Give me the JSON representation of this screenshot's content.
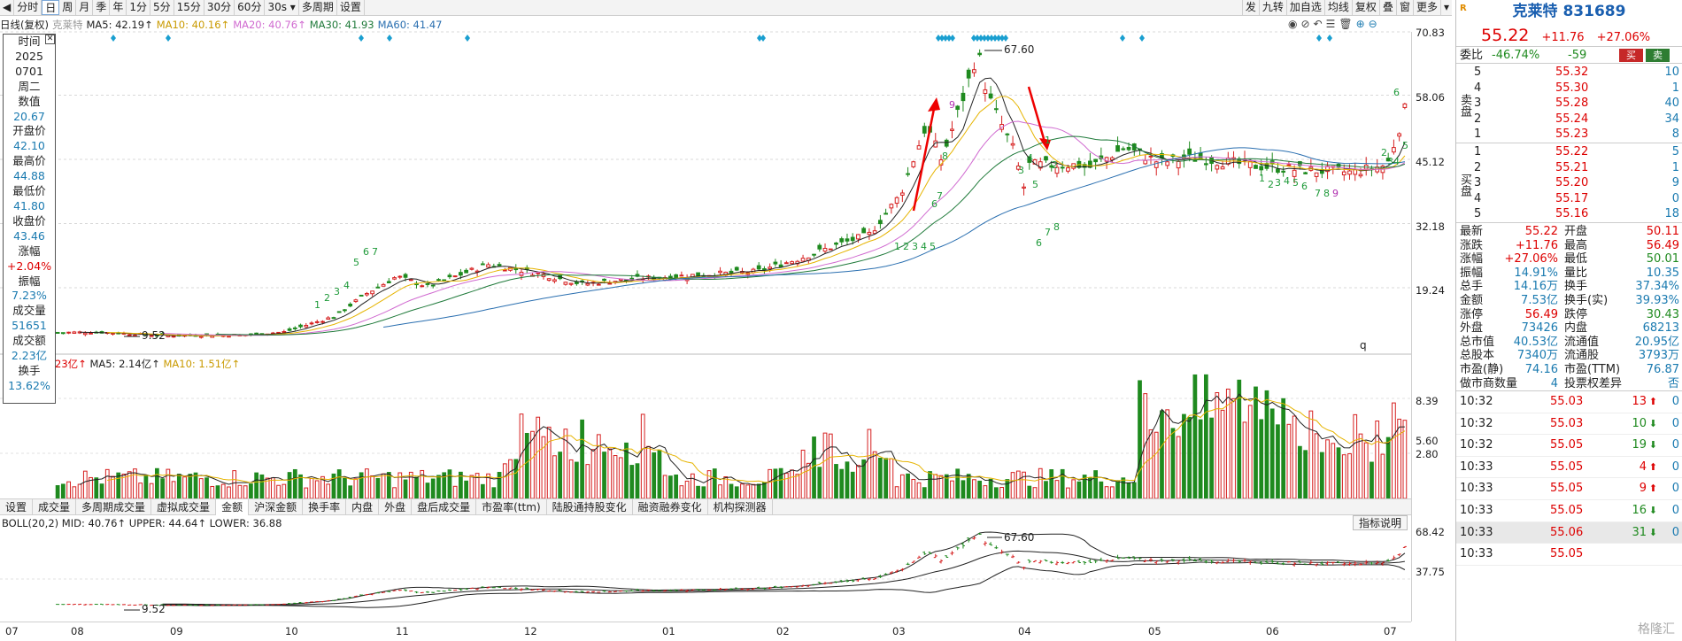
{
  "toolbar": {
    "left": [
      "◀",
      "分时",
      "日",
      "周",
      "月",
      "季",
      "年",
      "1分",
      "5分",
      "15分",
      "30分",
      "60分",
      "30s ▾",
      "多周期",
      "设置"
    ],
    "selected": "日",
    "right": [
      "发",
      "九转",
      "加自选",
      "均线",
      "复权",
      "叠",
      "窗",
      "更多",
      "▾"
    ]
  },
  "chart_header": {
    "period": "日线(复权)",
    "stock": "克莱特",
    "ma5": "MA5: 42.19↑",
    "ma10": "MA10: 40.16↑",
    "ma20": "MA20: 40.76↑",
    "ma30": "MA30: 41.93",
    "ma60": "MA60: 41.47"
  },
  "chart_icons": [
    "eye-icon",
    "eye-off-icon",
    "undo-icon",
    "list-icon",
    "trash-icon",
    "zoom-in-icon",
    "zoom-out-icon"
  ],
  "price_axis": [
    "70.83",
    "58.06",
    "45.12",
    "32.18",
    "19.24"
  ],
  "annotations": {
    "high": "67.60",
    "low": "9.52",
    "marker_q": "q"
  },
  "volume_header": {
    "prefix": "23亿↑",
    "ma5": "MA5: 2.14亿↑",
    "ma10": "MA10: 1.51亿↑"
  },
  "volume_axis": [
    "8.39",
    "5.60",
    "2.80"
  ],
  "indicator_tabs": [
    "设置",
    "成交量",
    "多周期成交量",
    "虚拟成交量",
    "金额",
    "沪深金额",
    "换手率",
    "内盘",
    "外盘",
    "盘后成交量",
    "市盈率(ttm)",
    "陆股通持股变化",
    "融资融券变化",
    "机构探测器"
  ],
  "indicator_selected": "金额",
  "boll_header": {
    "label": "BOLL(20,2)",
    "mid": "MID: 40.76↑",
    "upper": "UPPER: 44.64↑",
    "lower": "LOWER: 36.88"
  },
  "boll_axis": [
    "68.42",
    "37.75"
  ],
  "boll_annotations": {
    "high": "67.60",
    "low": "9.52"
  },
  "indicator_help": "指标说明",
  "x_axis": [
    "07",
    "08",
    "09",
    "10",
    "11",
    "12",
    "01",
    "02",
    "03",
    "04",
    "05",
    "06",
    "07"
  ],
  "info_panel": [
    {
      "k": "时间",
      "v": "2025",
      "v2": "0701",
      "v3": "周二"
    },
    {
      "k": "数值",
      "v": "20.67"
    },
    {
      "k": "开盘价",
      "v": "42.10"
    },
    {
      "k": "最高价",
      "v": "44.88"
    },
    {
      "k": "最低价",
      "v": "41.80"
    },
    {
      "k": "收盘价",
      "v": "43.46"
    },
    {
      "k": "涨幅",
      "v": "+2.04%"
    },
    {
      "k": "振幅",
      "v": "7.23%"
    },
    {
      "k": "成交量",
      "v": "51651"
    },
    {
      "k": "成交额",
      "v": "2.23亿"
    },
    {
      "k": "换手",
      "v": "13.62%"
    }
  ],
  "quote": {
    "badge": "R",
    "name": "克莱特 831689",
    "price": "55.22",
    "change": "+11.76",
    "pct": "+27.06%",
    "weibi_label": "委比",
    "weibi": "-46.74%",
    "weicha": "-59",
    "buy_btn": "买",
    "sell_btn": "卖",
    "sell_side": "卖盘",
    "buy_side": "买盘",
    "asks": [
      {
        "lv": "5",
        "price": "55.32",
        "vol": "10"
      },
      {
        "lv": "4",
        "price": "55.30",
        "vol": "1"
      },
      {
        "lv": "3",
        "price": "55.28",
        "vol": "40"
      },
      {
        "lv": "2",
        "price": "55.24",
        "vol": "34"
      },
      {
        "lv": "1",
        "price": "55.23",
        "vol": "8"
      }
    ],
    "bids": [
      {
        "lv": "1",
        "price": "55.22",
        "vol": "5"
      },
      {
        "lv": "2",
        "price": "55.21",
        "vol": "1"
      },
      {
        "lv": "3",
        "price": "55.20",
        "vol": "9"
      },
      {
        "lv": "4",
        "price": "55.17",
        "vol": "0"
      },
      {
        "lv": "5",
        "price": "55.16",
        "vol": "18"
      }
    ],
    "stats": [
      {
        "l1": "最新",
        "v1": "55.22",
        "l2": "开盘",
        "v2": "50.11"
      },
      {
        "l1": "涨跌",
        "v1": "+11.76",
        "l2": "最高",
        "v2": "56.49"
      },
      {
        "l1": "涨幅",
        "v1": "+27.06%",
        "l2": "最低",
        "v2": "50.01"
      },
      {
        "l1": "振幅",
        "v1": "14.91%",
        "l2": "量比",
        "v2": "10.35"
      },
      {
        "l1": "总手",
        "v1": "14.16万",
        "l2": "换手",
        "v2": "37.34%"
      },
      {
        "l1": "金额",
        "v1": "7.53亿",
        "l2": "换手(实)",
        "v2": "39.93%"
      },
      {
        "l1": "涨停",
        "v1": "56.49",
        "l2": "跌停",
        "v2": "30.43"
      },
      {
        "l1": "外盘",
        "v1": "73426",
        "l2": "内盘",
        "v2": "68213"
      },
      {
        "l1": "总市值",
        "v1": "40.53亿",
        "l2": "流通值",
        "v2": "20.95亿"
      },
      {
        "l1": "总股本",
        "v1": "7340万",
        "l2": "流通股",
        "v2": "3793万"
      },
      {
        "l1": "市盈(静)",
        "v1": "74.16",
        "l2": "市盈(TTM)",
        "v2": "76.87"
      },
      {
        "l1": "做市商数量",
        "v1": "4",
        "l2": "投票权差异",
        "v2": "否"
      }
    ],
    "trades": [
      {
        "t": "10:32",
        "p": "55.03",
        "v": "13",
        "dir": "up",
        "n": "0"
      },
      {
        "t": "10:32",
        "p": "55.03",
        "v": "10",
        "dir": "down",
        "n": "0"
      },
      {
        "t": "10:32",
        "p": "55.05",
        "v": "19",
        "dir": "down",
        "n": "0"
      },
      {
        "t": "10:33",
        "p": "55.05",
        "v": "4",
        "dir": "up",
        "n": "0"
      },
      {
        "t": "10:33",
        "p": "55.05",
        "v": "9",
        "dir": "up",
        "n": "0"
      },
      {
        "t": "10:33",
        "p": "55.05",
        "v": "16",
        "dir": "down",
        "n": "0"
      },
      {
        "t": "10:33",
        "p": "55.06",
        "v": "31",
        "dir": "down",
        "n": "0"
      },
      {
        "t": "10:33",
        "p": "55.05",
        "v": "",
        "dir": "",
        "n": ""
      }
    ],
    "watermark": "格隆汇"
  },
  "colors": {
    "up": "#d62020",
    "down": "#1f8a1f",
    "ma5": "#222222",
    "ma10": "#e6b400",
    "ma20": "#d06ad0",
    "ma30": "#1f7a3a",
    "ma60": "#2a6fb0",
    "blue_text": "#1a7ab0",
    "signal": "#1a9fd0"
  }
}
